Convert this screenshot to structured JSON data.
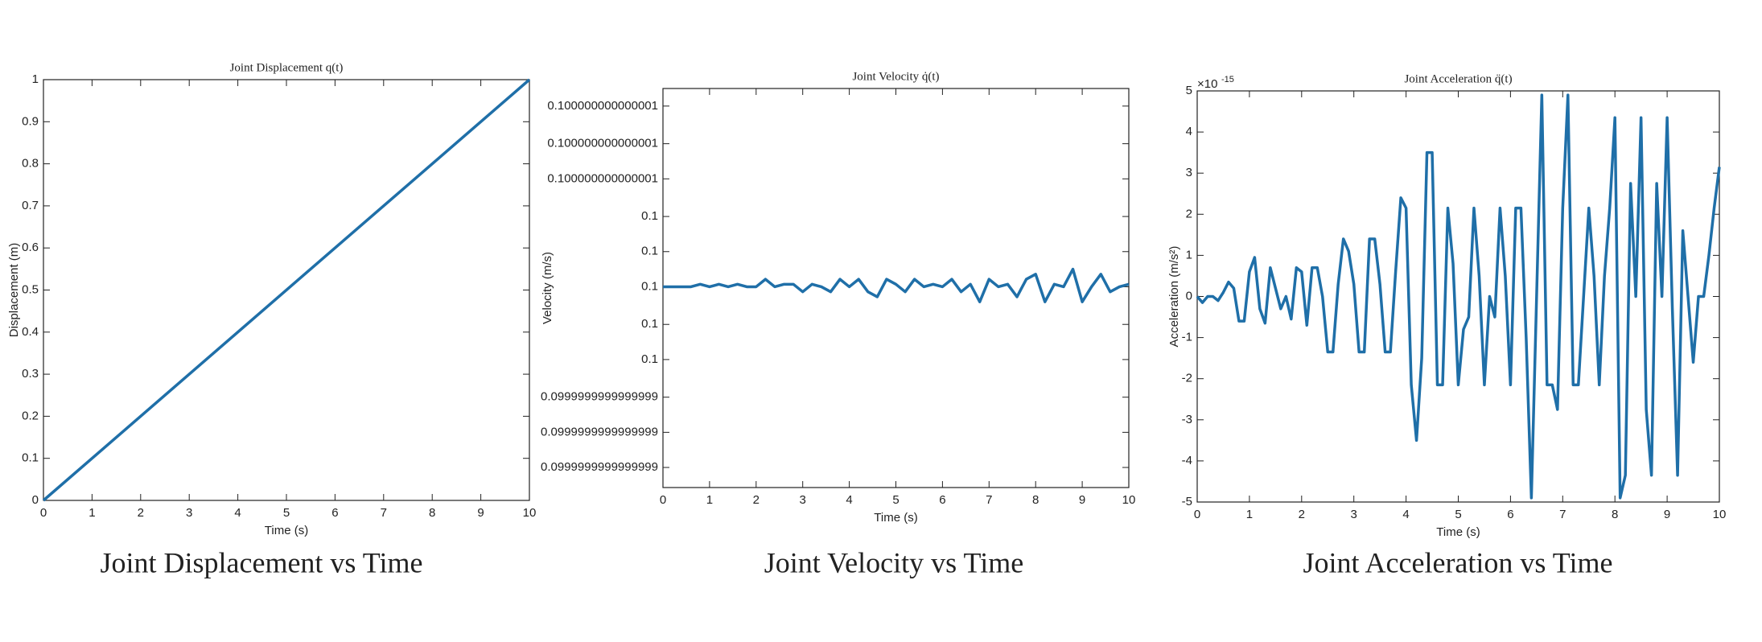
{
  "chart_data": [
    {
      "type": "line",
      "title": "Joint Displacement q(t)",
      "xlabel": "Time (s)",
      "ylabel": "Displacement (m)",
      "caption": "Joint Displacement vs Time",
      "x": [
        0,
        10
      ],
      "series": [
        {
          "color": "#1f6fa8",
          "values": [
            0,
            1
          ]
        }
      ],
      "xlim": [
        0,
        10
      ],
      "xticks": [
        0,
        1,
        2,
        3,
        4,
        5,
        6,
        7,
        8,
        9,
        10
      ],
      "ylim": [
        0,
        1
      ],
      "yticks": [
        0,
        0.1,
        0.2,
        0.3,
        0.4,
        0.5,
        0.6,
        0.7,
        0.8,
        0.9,
        1
      ],
      "grid": false
    },
    {
      "type": "line",
      "title": "Joint Velocity q̇(t)",
      "xlabel": "Time (s)",
      "ylabel": "Velocity (m/s)",
      "caption": "Joint Velocity vs Time",
      "x": [
        0,
        0.2,
        0.4,
        0.6,
        0.8,
        1,
        1.2,
        1.4,
        1.6,
        1.8,
        2,
        2.2,
        2.4,
        2.6,
        2.8,
        3,
        3.2,
        3.4,
        3.6,
        3.8,
        4,
        4.2,
        4.4,
        4.6,
        4.8,
        5,
        5.2,
        5.4,
        5.6,
        5.8,
        6,
        6.2,
        6.4,
        6.6,
        6.8,
        7,
        7.2,
        7.4,
        7.6,
        7.8,
        8,
        8.2,
        8.4,
        8.6,
        8.8,
        9,
        9.2,
        9.4,
        9.6,
        9.8,
        10
      ],
      "series": [
        {
          "color": "#1f6fa8",
          "values": [
            0.1,
            0.1,
            0.1,
            0.1,
            0.10000000000000002,
            0.1,
            0.10000000000000002,
            0.1,
            0.10000000000000002,
            0.1,
            0.1,
            0.10000000000000005,
            0.1,
            0.10000000000000002,
            0.10000000000000002,
            0.09999999999999998,
            0.10000000000000002,
            0.1,
            0.09999999999999998,
            0.10000000000000005,
            0.1,
            0.10000000000000005,
            0.09999999999999998,
            0.09999999999999995,
            0.10000000000000005,
            0.10000000000000002,
            0.09999999999999998,
            0.10000000000000005,
            0.1,
            0.10000000000000002,
            0.1,
            0.10000000000000005,
            0.09999999999999998,
            0.10000000000000002,
            0.09999999999999992,
            0.10000000000000005,
            0.1,
            0.10000000000000002,
            0.09999999999999995,
            0.10000000000000005,
            0.10000000000000007,
            0.09999999999999992,
            0.10000000000000002,
            0.1,
            0.1000000000000001,
            0.09999999999999992,
            0.1,
            0.10000000000000007,
            0.09999999999999998,
            0.1,
            0.10000000000000002
          ]
        }
      ],
      "xlim": [
        0,
        10
      ],
      "xticks": [
        0,
        1,
        2,
        3,
        4,
        5,
        6,
        7,
        8,
        9,
        10
      ],
      "ylim": [
        0.0999999999999989,
        0.1000000000000011
      ],
      "yticks": [
        {
          "value": 0.099999999999999,
          "label": "0.0999999999999999"
        },
        {
          "value": 0.0999999999999992,
          "label": "0.0999999999999999"
        },
        {
          "value": 0.0999999999999994,
          "label": "0.0999999999999999"
        },
        {
          "value": 0.0999999999999996,
          "label": "0.1"
        },
        {
          "value": 0.0999999999999998,
          "label": "0.1"
        },
        0.1,
        {
          "value": 0.1000000000000002,
          "label": "0.1"
        },
        {
          "value": 0.1000000000000004,
          "label": "0.1"
        },
        {
          "value": 0.1000000000000006,
          "label": "0.100000000000001"
        },
        {
          "value": 0.1000000000000008,
          "label": "0.100000000000001"
        },
        0.100000000000001
      ],
      "grid": false
    },
    {
      "type": "line",
      "title": "Joint Acceleration q̈(t)",
      "xlabel": "Time (s)",
      "ylabel": "Acceleration (m/s²)",
      "caption": "Joint Acceleration vs Time",
      "y_multiplier": "×10",
      "y_multiplier_exponent": "-15",
      "x": [
        0,
        0.1,
        0.2,
        0.3,
        0.4,
        0.5,
        0.6,
        0.7,
        0.8,
        0.9,
        1,
        1.1,
        1.2,
        1.3,
        1.4,
        1.5,
        1.6,
        1.7,
        1.8,
        1.9,
        2,
        2.1,
        2.2,
        2.3,
        2.4,
        2.5,
        2.6,
        2.7,
        2.8,
        2.9,
        3,
        3.1,
        3.2,
        3.3,
        3.4,
        3.5,
        3.6,
        3.7,
        3.8,
        3.9,
        4,
        4.1,
        4.2,
        4.3,
        4.4,
        4.5,
        4.6,
        4.7,
        4.8,
        4.9,
        5,
        5.1,
        5.2,
        5.3,
        5.4,
        5.5,
        5.6,
        5.7,
        5.8,
        5.9,
        6,
        6.1,
        6.2,
        6.3,
        6.4,
        6.5,
        6.6,
        6.7,
        6.8,
        6.9,
        7,
        7.1,
        7.2,
        7.3,
        7.4,
        7.5,
        7.6,
        7.7,
        7.8,
        7.9,
        8,
        8.1,
        8.2,
        8.3,
        8.4,
        8.5,
        8.6,
        8.7,
        8.8,
        8.9,
        9,
        9.1,
        9.2,
        9.3,
        9.4,
        9.5,
        9.6,
        9.7,
        9.8,
        9.9,
        10
      ],
      "series": [
        {
          "color": "#1f6fa8",
          "values": [
            0,
            -0.15,
            0,
            0,
            -0.1,
            0.1,
            0.35,
            0.2,
            -0.6,
            -0.6,
            0.6,
            0.95,
            -0.3,
            -0.65,
            0.7,
            0.2,
            -0.3,
            0,
            -0.55,
            0.7,
            0.6,
            -0.7,
            0.7,
            0.7,
            0,
            -1.35,
            -1.35,
            0.3,
            1.4,
            1.1,
            0.3,
            -1.35,
            -1.35,
            1.4,
            1.4,
            0.3,
            -1.35,
            -1.35,
            0.6,
            2.4,
            2.15,
            -2.15,
            -3.5,
            -1.5,
            3.5,
            3.5,
            -2.15,
            -2.15,
            2.15,
            0.8,
            -2.15,
            -0.8,
            -0.5,
            2.15,
            0.5,
            -2.15,
            0,
            -0.5,
            2.15,
            0.5,
            -2.15,
            2.15,
            2.15,
            -1,
            -4.9,
            0,
            4.9,
            -2.15,
            -2.15,
            -2.75,
            2.15,
            4.9,
            -2.15,
            -2.15,
            0,
            2.15,
            0.5,
            -2.15,
            0.5,
            2.15,
            4.35,
            -4.9,
            -4.35,
            2.75,
            0,
            4.35,
            -2.75,
            -4.35,
            2.75,
            0,
            4.35,
            -0.3,
            -4.35,
            1.6,
            0,
            -1.6,
            0,
            0,
            1,
            2.15,
            3.15
          ]
        }
      ],
      "xlim": [
        0,
        10
      ],
      "xticks": [
        0,
        1,
        2,
        3,
        4,
        5,
        6,
        7,
        8,
        9,
        10
      ],
      "ylim": [
        -5,
        5
      ],
      "yticks": [
        -5,
        -4,
        -3,
        -2,
        -1,
        0,
        1,
        2,
        3,
        4,
        5
      ],
      "grid": false
    }
  ]
}
